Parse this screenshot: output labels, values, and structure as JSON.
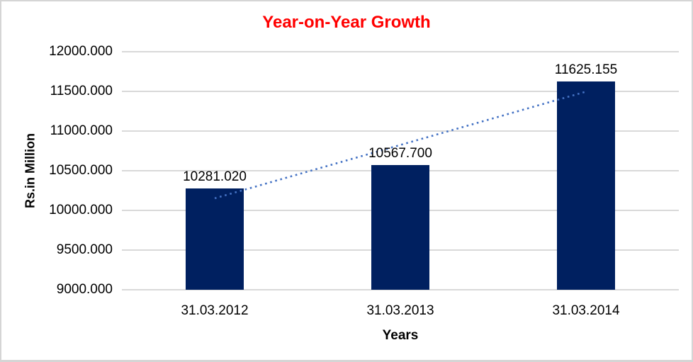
{
  "window": {
    "background": "#FFFFFF",
    "frame_border_color": "#D5D5D5"
  },
  "chart_data": {
    "type": "bar",
    "title": "Year-on-Year Growth",
    "title_color": "#FF0000",
    "xlabel": "Years",
    "ylabel": "Rs.in Million",
    "categories": [
      "31.03.2012",
      "31.03.2013",
      "31.03.2014"
    ],
    "values": [
      10281.02,
      10567.7,
      11625.155
    ],
    "data_labels": [
      "10281.020",
      "10567.700",
      "11625.155"
    ],
    "ylim": [
      9000,
      12000
    ],
    "ytick_step": 500,
    "ytick_labels": [
      "9000.000",
      "9500.000",
      "10000.000",
      "10500.000",
      "11000.000",
      "11500.000",
      "12000.000"
    ],
    "bar_color": "#002060",
    "gridline_color": "#D9D9D9",
    "text_color": "#000000",
    "grid": true,
    "legend": "none",
    "trendline": {
      "type": "linear",
      "style": "dotted",
      "color": "#4472C4"
    }
  }
}
